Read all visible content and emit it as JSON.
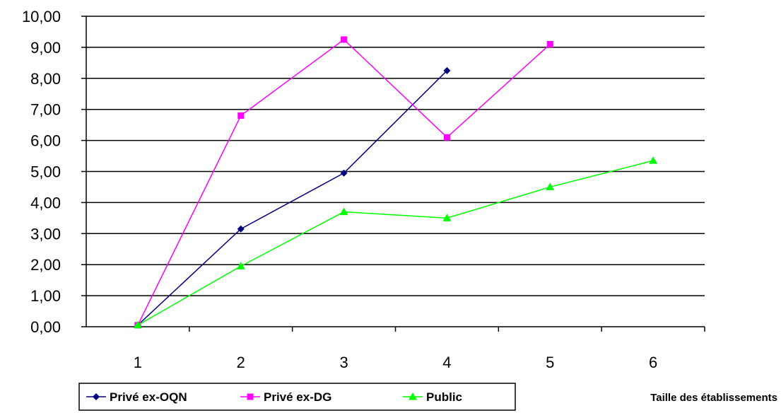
{
  "chart_data": {
    "type": "line",
    "title": "",
    "xlabel": "Taille des établissements",
    "ylabel": "",
    "categories": [
      "1",
      "2",
      "3",
      "4",
      "5",
      "6"
    ],
    "ylim": [
      0,
      10
    ],
    "y_ticks": [
      "0,00",
      "1,00",
      "2,00",
      "3,00",
      "4,00",
      "5,00",
      "6,00",
      "7,00",
      "8,00",
      "9,00",
      "10,00"
    ],
    "grid": true,
    "legend_position": "bottom-left",
    "series": [
      {
        "name": "Privé ex-OQN",
        "color": "#000080",
        "marker": "diamond",
        "values": [
          0.05,
          3.15,
          4.95,
          8.25,
          null,
          null
        ]
      },
      {
        "name": "Privé ex-DG",
        "color": "#ff00ff",
        "marker": "square",
        "values": [
          0.05,
          6.8,
          9.25,
          6.1,
          9.1,
          null
        ]
      },
      {
        "name": "Public",
        "color": "#00ff00",
        "marker": "triangle",
        "values": [
          0.05,
          1.95,
          3.7,
          3.5,
          4.5,
          5.35
        ]
      }
    ]
  }
}
